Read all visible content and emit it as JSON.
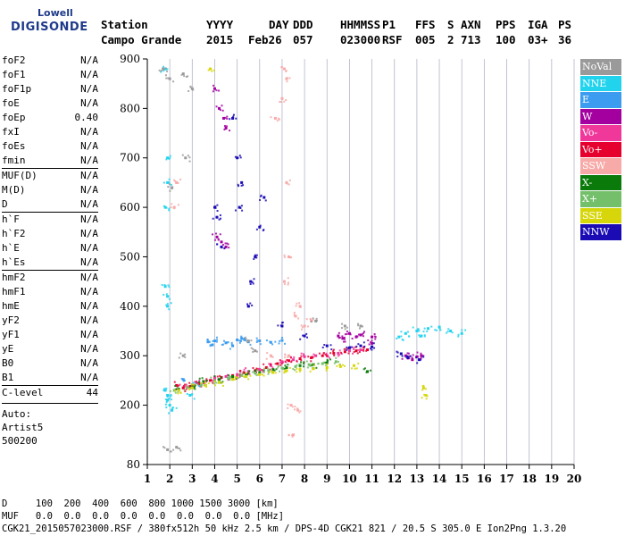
{
  "logo": {
    "line1": "Lowell",
    "line2": "DIGISONDE"
  },
  "header": {
    "labels": [
      "Station",
      "YYYY",
      "DAY",
      "DDD",
      "HHMMSS",
      "P1",
      "FFS",
      "S",
      "AXN",
      "PPS",
      "IGA",
      "PS"
    ],
    "values": [
      "Campo Grande",
      "2015",
      "Feb26",
      "057",
      "023000",
      "RSF",
      "005",
      "2",
      "713",
      "100",
      "03+",
      "36"
    ]
  },
  "params": [
    {
      "group": [
        [
          "foF2",
          "N/A"
        ],
        [
          "foF1",
          "N/A"
        ],
        [
          "foF1p",
          "N/A"
        ],
        [
          "foE",
          "N/A"
        ],
        [
          "foEp",
          "0.40"
        ],
        [
          "fxI",
          "N/A"
        ],
        [
          "foEs",
          "N/A"
        ],
        [
          "fmin",
          "N/A"
        ]
      ]
    },
    {
      "group": [
        [
          "MUF(D)",
          "N/A"
        ],
        [
          "M(D)",
          "N/A"
        ],
        [
          "D",
          "N/A"
        ]
      ]
    },
    {
      "group": [
        [
          "h`F",
          "N/A"
        ],
        [
          "h`F2",
          "N/A"
        ],
        [
          "h`E",
          "N/A"
        ],
        [
          "h`Es",
          "N/A"
        ]
      ]
    },
    {
      "group": [
        [
          "hmF2",
          "N/A"
        ],
        [
          "hmF1",
          "N/A"
        ],
        [
          "hmE",
          "N/A"
        ],
        [
          "yF2",
          "N/A"
        ],
        [
          "yF1",
          "N/A"
        ],
        [
          "yE",
          "N/A"
        ],
        [
          "B0",
          "N/A"
        ],
        [
          "B1",
          "N/A"
        ]
      ]
    },
    {
      "group": [
        [
          "C-level",
          "44"
        ]
      ]
    }
  ],
  "notes": [
    "Auto:",
    "Artist5",
    "500200"
  ],
  "legend": [
    {
      "label": "NoVal",
      "color": "#9a9a9a"
    },
    {
      "label": "NNE",
      "color": "#22d3ee"
    },
    {
      "label": "E",
      "color": "#3b9cf0"
    },
    {
      "label": "W",
      "color": "#a3009f"
    },
    {
      "label": "Vo-",
      "color": "#f0389b"
    },
    {
      "label": "Vo+",
      "color": "#e6002e"
    },
    {
      "label": "SSW",
      "color": "#f7aaa8"
    },
    {
      "label": "X-",
      "color": "#0a7a0a"
    },
    {
      "label": "X+",
      "color": "#74c06a"
    },
    {
      "label": "SSE",
      "color": "#d6d60a"
    },
    {
      "label": "NNW",
      "color": "#1a0bb4"
    }
  ],
  "footer": {
    "row1": "D     100  200  400  600  800 1000 1500 3000 [km]",
    "row2": "MUF   0.0  0.0  0.0  0.0  0.0  0.0  0.0  0.0 [MHz]",
    "row3": "CGK21_2015057023000.RSF / 380fx512h 50 kHz 2.5 km / DPS-4D CGK21 821 / 20.5 S 305.0 E Ion2Png 1.3.20"
  },
  "chart_data": {
    "type": "scatter",
    "title": "",
    "xlabel": "",
    "ylabel": "",
    "xlim": [
      1,
      20
    ],
    "ylim": [
      80,
      900
    ],
    "x_ticks": [
      1,
      2,
      3,
      4,
      5,
      6,
      7,
      8,
      9,
      10,
      11,
      12,
      13,
      14,
      15,
      16,
      17,
      18,
      19,
      20
    ],
    "y_ticks": [
      80,
      200,
      300,
      400,
      500,
      600,
      700,
      800,
      900
    ],
    "grid": "vertical",
    "legend_position": "right",
    "series": [
      {
        "name": "NNE",
        "color": "#22d3ee",
        "points": [
          [
            1.8,
            880
          ],
          [
            1.9,
            700
          ],
          [
            1.9,
            650
          ],
          [
            1.8,
            600
          ],
          [
            1.8,
            440
          ],
          [
            1.9,
            420
          ],
          [
            1.9,
            400
          ],
          [
            1.8,
            230
          ],
          [
            1.9,
            220
          ],
          [
            1.9,
            210
          ],
          [
            2.0,
            200
          ],
          [
            2.1,
            190
          ],
          [
            12.5,
            345
          ],
          [
            13.0,
            350
          ],
          [
            13.5,
            355
          ],
          [
            14.0,
            358
          ],
          [
            14.5,
            350
          ],
          [
            15.0,
            345
          ],
          [
            12.2,
            338
          ],
          [
            13.2,
            340
          ],
          [
            2.9,
            220
          ],
          [
            3.0,
            240
          ]
        ]
      },
      {
        "name": "E",
        "color": "#3b9cf0",
        "points": [
          [
            3.7,
            328
          ],
          [
            4.0,
            330
          ],
          [
            4.5,
            326
          ],
          [
            5.0,
            332
          ],
          [
            5.5,
            328
          ],
          [
            6.0,
            330
          ],
          [
            6.5,
            327
          ],
          [
            7.0,
            331
          ],
          [
            3.9,
            322
          ],
          [
            4.8,
            320
          ],
          [
            5.2,
            335
          ],
          [
            2.6,
            252
          ],
          [
            3.2,
            245
          ]
        ]
      },
      {
        "name": "W",
        "color": "#a3009f",
        "points": [
          [
            4.0,
            840
          ],
          [
            4.2,
            800
          ],
          [
            4.4,
            780
          ],
          [
            4.5,
            760
          ],
          [
            4.1,
            540
          ],
          [
            4.3,
            530
          ],
          [
            4.5,
            520
          ],
          [
            9.5,
            340
          ],
          [
            10.0,
            345
          ],
          [
            10.5,
            342
          ],
          [
            11.0,
            338
          ],
          [
            12.5,
            300
          ],
          [
            13.0,
            298
          ],
          [
            12.8,
            292
          ],
          [
            13.2,
            300
          ],
          [
            9.7,
            335
          ],
          [
            10.3,
            338
          ],
          [
            11.0,
            325
          ]
        ]
      },
      {
        "name": "Vo-",
        "color": "#f0389b",
        "points": [
          [
            2.6,
            235
          ],
          [
            3.0,
            240
          ],
          [
            3.5,
            245
          ],
          [
            4.0,
            255
          ],
          [
            4.5,
            258
          ],
          [
            5.0,
            262
          ],
          [
            5.5,
            268
          ],
          [
            6.0,
            272
          ],
          [
            6.5,
            280
          ],
          [
            7.0,
            288
          ],
          [
            7.5,
            292
          ],
          [
            8.0,
            298
          ],
          [
            8.5,
            300
          ],
          [
            9.0,
            300
          ],
          [
            9.5,
            305
          ],
          [
            10.0,
            310
          ],
          [
            10.5,
            312
          ]
        ]
      },
      {
        "name": "Vo+",
        "color": "#e6002e",
        "points": [
          [
            2.3,
            240
          ],
          [
            2.6,
            235
          ],
          [
            2.9,
            238
          ],
          [
            3.3,
            244
          ],
          [
            3.8,
            250
          ],
          [
            4.3,
            256
          ],
          [
            4.8,
            260
          ],
          [
            5.3,
            266
          ],
          [
            5.8,
            270
          ],
          [
            6.3,
            276
          ],
          [
            6.8,
            284
          ],
          [
            7.3,
            290
          ],
          [
            7.8,
            294
          ],
          [
            8.3,
            296
          ],
          [
            8.8,
            300
          ],
          [
            9.3,
            305
          ],
          [
            9.8,
            308
          ],
          [
            10.3,
            310
          ],
          [
            10.8,
            312
          ]
        ]
      },
      {
        "name": "SSW",
        "color": "#f7aaa8",
        "points": [
          [
            7.1,
            880
          ],
          [
            7.2,
            860
          ],
          [
            7.0,
            820
          ],
          [
            7.2,
            650
          ],
          [
            7.3,
            500
          ],
          [
            7.1,
            450
          ],
          [
            7.3,
            300
          ],
          [
            7.6,
            380
          ],
          [
            7.8,
            400
          ],
          [
            8.0,
            360
          ],
          [
            8.3,
            370
          ],
          [
            6.5,
            300
          ],
          [
            2.3,
            650
          ],
          [
            2.2,
            600
          ],
          [
            7.4,
            200
          ],
          [
            7.7,
            190
          ],
          [
            6.7,
            780
          ],
          [
            7.5,
            140
          ]
        ]
      },
      {
        "name": "X-",
        "color": "#0a7a0a",
        "points": [
          [
            2.4,
            232
          ],
          [
            3.0,
            238
          ],
          [
            3.5,
            248
          ],
          [
            4.2,
            252
          ],
          [
            4.8,
            258
          ],
          [
            5.4,
            262
          ],
          [
            6.0,
            266
          ],
          [
            6.6,
            272
          ],
          [
            7.2,
            276
          ],
          [
            7.8,
            280
          ],
          [
            8.4,
            282
          ],
          [
            9.0,
            286
          ],
          [
            10.8,
            268
          ]
        ]
      },
      {
        "name": "X+",
        "color": "#74c06a",
        "points": [
          [
            2.2,
            230
          ],
          [
            2.8,
            236
          ],
          [
            3.4,
            242
          ],
          [
            4.0,
            250
          ],
          [
            4.6,
            255
          ],
          [
            5.2,
            260
          ],
          [
            5.8,
            265
          ],
          [
            6.4,
            270
          ],
          [
            7.0,
            275
          ],
          [
            7.6,
            278
          ],
          [
            8.2,
            282
          ],
          [
            8.8,
            284
          ],
          [
            9.4,
            288
          ]
        ]
      },
      {
        "name": "SSE",
        "color": "#d6d60a",
        "points": [
          [
            3.8,
            880
          ],
          [
            2.4,
            230
          ],
          [
            3.0,
            235
          ],
          [
            3.6,
            240
          ],
          [
            4.2,
            246
          ],
          [
            4.8,
            252
          ],
          [
            5.4,
            258
          ],
          [
            6.0,
            262
          ],
          [
            6.6,
            266
          ],
          [
            7.2,
            270
          ],
          [
            7.8,
            272
          ],
          [
            8.4,
            274
          ],
          [
            9.0,
            276
          ],
          [
            9.6,
            278
          ],
          [
            10.2,
            280
          ],
          [
            13.3,
            235
          ],
          [
            13.4,
            220
          ]
        ]
      },
      {
        "name": "NNW",
        "color": "#1a0bb4",
        "points": [
          [
            4.0,
            600
          ],
          [
            4.1,
            580
          ],
          [
            4.3,
            520
          ],
          [
            4.8,
            780
          ],
          [
            5.0,
            700
          ],
          [
            5.2,
            650
          ],
          [
            5.5,
            400
          ],
          [
            5.6,
            450
          ],
          [
            5.8,
            500
          ],
          [
            6.0,
            560
          ],
          [
            6.2,
            620
          ],
          [
            7.0,
            360
          ],
          [
            8.0,
            340
          ],
          [
            9.0,
            320
          ],
          [
            10.0,
            316
          ],
          [
            10.5,
            320
          ],
          [
            11.0,
            318
          ],
          [
            12.3,
            304
          ],
          [
            12.6,
            296
          ],
          [
            13.1,
            292
          ],
          [
            5.1,
            600
          ]
        ]
      },
      {
        "name": "NoVal",
        "color": "#9a9a9a",
        "points": [
          [
            1.7,
            880
          ],
          [
            2.0,
            860
          ],
          [
            2.6,
            870
          ],
          [
            2.7,
            700
          ],
          [
            2.1,
            640
          ],
          [
            2.6,
            300
          ],
          [
            5.5,
            330
          ],
          [
            5.8,
            310
          ],
          [
            8.5,
            370
          ],
          [
            9.8,
            360
          ],
          [
            10.5,
            360
          ],
          [
            3.0,
            840
          ],
          [
            1.9,
            110
          ],
          [
            2.3,
            115
          ]
        ]
      }
    ]
  }
}
